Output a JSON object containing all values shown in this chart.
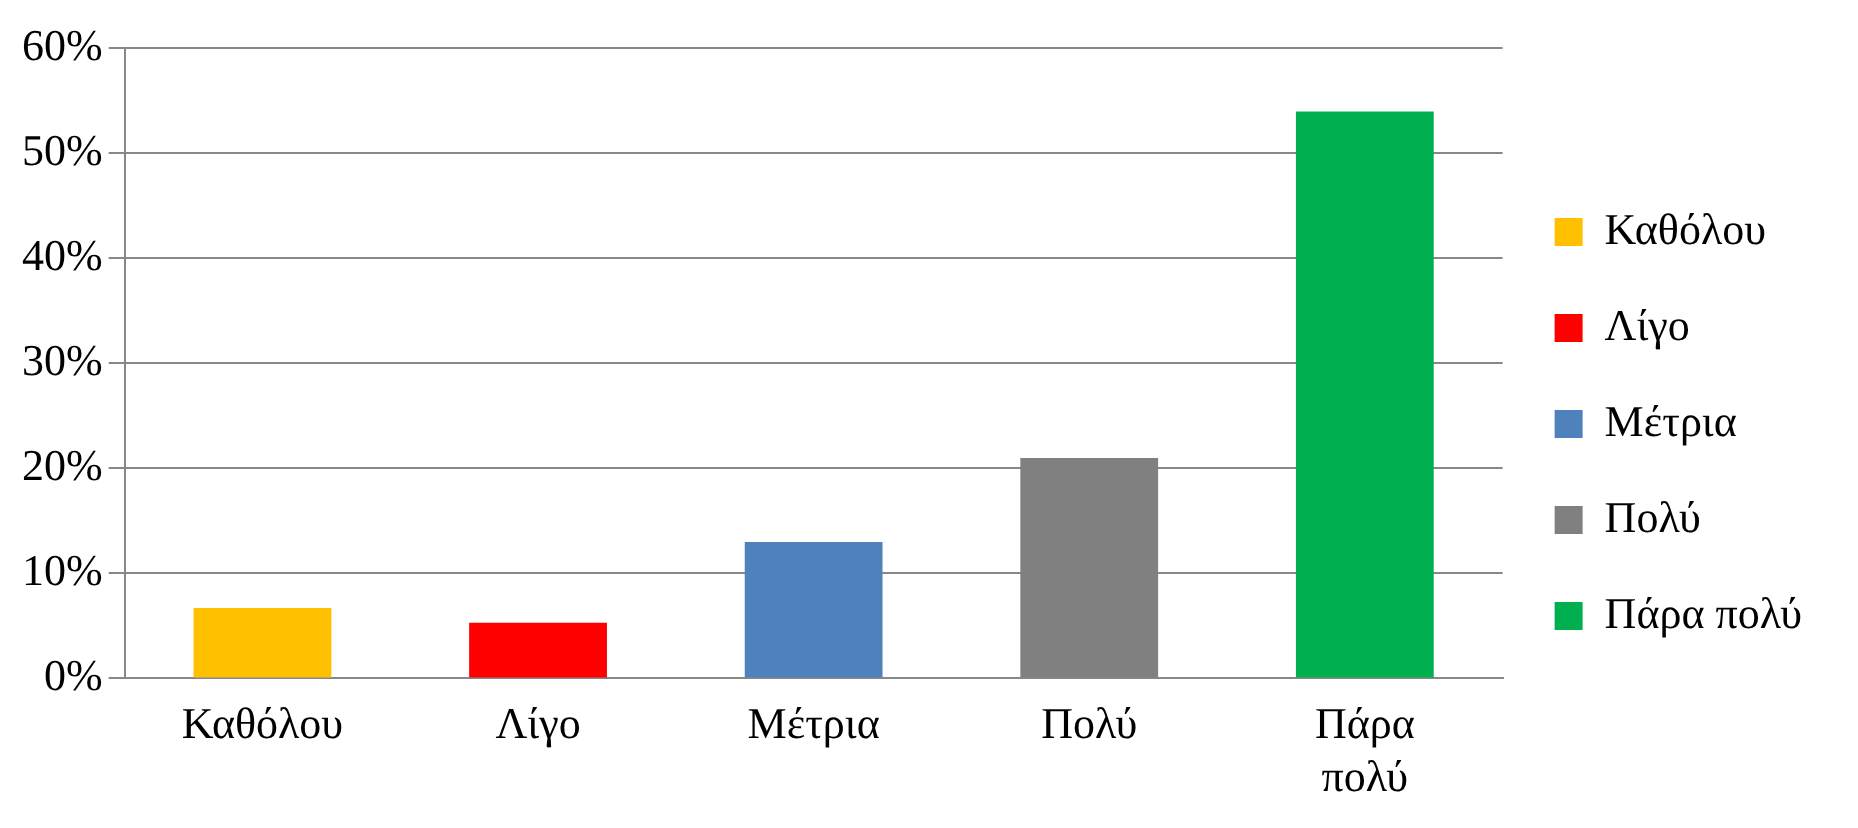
{
  "chart_data": {
    "type": "bar",
    "categories": [
      "Καθόλου",
      "Λίγο",
      "Μέτρια",
      "Πολύ",
      "Πάρα πολύ"
    ],
    "series": [
      {
        "name": "Καθόλου",
        "color": "#ffc000",
        "values": [
          6.7,
          null,
          null,
          null,
          null
        ]
      },
      {
        "name": "Λίγο",
        "color": "#ff0000",
        "values": [
          null,
          5.3,
          null,
          null,
          null
        ]
      },
      {
        "name": "Μέτρια",
        "color": "#4f81bd",
        "values": [
          null,
          null,
          13,
          null,
          null
        ]
      },
      {
        "name": "Πολύ",
        "color": "#808080",
        "values": [
          null,
          null,
          null,
          21,
          null
        ]
      },
      {
        "name": "Πάρα πολύ",
        "color": "#00b050",
        "values": [
          null,
          null,
          null,
          null,
          54
        ]
      }
    ],
    "ylim": [
      0,
      60
    ],
    "yticks": [
      {
        "value": 0,
        "label": "0%"
      },
      {
        "value": 10,
        "label": "10%"
      },
      {
        "value": 20,
        "label": "20%"
      },
      {
        "value": 30,
        "label": "30%"
      },
      {
        "value": 40,
        "label": "40%"
      },
      {
        "value": 50,
        "label": "50%"
      },
      {
        "value": 60,
        "label": "60%"
      }
    ],
    "grid": "y",
    "legend": "right"
  }
}
